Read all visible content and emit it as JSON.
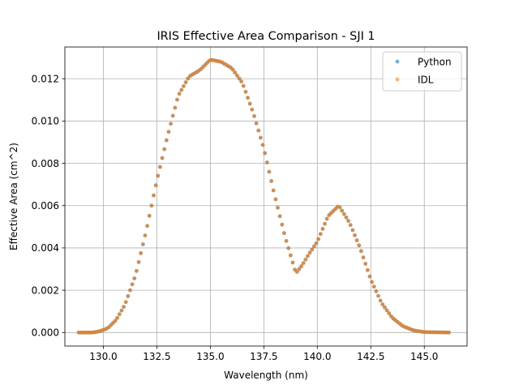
{
  "chart_data": {
    "type": "scatter",
    "title": "IRIS Effective Area Comparison - SJI 1",
    "xlabel": "Wavelength (nm)",
    "ylabel": "Effective Area (cm^2)",
    "xlim": [
      128.2,
      147.0
    ],
    "ylim": [
      -0.00064,
      0.0135
    ],
    "x_ticks": [
      130.0,
      132.5,
      135.0,
      137.5,
      140.0,
      142.5,
      145.0
    ],
    "x_tick_labels": [
      "130.0",
      "132.5",
      "135.0",
      "137.5",
      "140.0",
      "142.5",
      "145.0"
    ],
    "y_ticks": [
      0.0,
      0.002,
      0.004,
      0.006,
      0.008,
      0.01,
      0.012
    ],
    "y_tick_labels": [
      "0.000",
      "0.002",
      "0.004",
      "0.006",
      "0.008",
      "0.010",
      "0.012"
    ],
    "grid": true,
    "legend_position": "top-right",
    "x_range": [
      128.85,
      146.15
    ],
    "x_step": 0.1,
    "curve_keypoints": [
      [
        128.85,
        0.0
      ],
      [
        129.5,
        0.0
      ],
      [
        129.8,
        5e-05
      ],
      [
        130.2,
        0.0002
      ],
      [
        130.6,
        0.0006
      ],
      [
        131.0,
        0.0013
      ],
      [
        131.5,
        0.0027
      ],
      [
        132.0,
        0.0048
      ],
      [
        132.5,
        0.0072
      ],
      [
        133.0,
        0.0093
      ],
      [
        133.5,
        0.0112
      ],
      [
        134.0,
        0.0121
      ],
      [
        134.5,
        0.0124
      ],
      [
        135.0,
        0.0129
      ],
      [
        135.5,
        0.0128
      ],
      [
        136.0,
        0.0125
      ],
      [
        136.5,
        0.0118
      ],
      [
        137.0,
        0.0104
      ],
      [
        137.5,
        0.0087
      ],
      [
        138.0,
        0.0065
      ],
      [
        138.5,
        0.0045
      ],
      [
        139.0,
        0.0028
      ],
      [
        139.3,
        0.0032
      ],
      [
        139.6,
        0.0037
      ],
      [
        140.0,
        0.0043
      ],
      [
        140.5,
        0.0055
      ],
      [
        141.0,
        0.006
      ],
      [
        141.5,
        0.0052
      ],
      [
        142.0,
        0.004
      ],
      [
        142.5,
        0.0025
      ],
      [
        143.0,
        0.0014
      ],
      [
        143.5,
        0.0007
      ],
      [
        144.0,
        0.0003
      ],
      [
        144.5,
        0.0001
      ],
      [
        145.0,
        2e-05
      ],
      [
        146.15,
        0.0
      ]
    ],
    "series": [
      {
        "name": "Python",
        "color": "#1f77b4"
      },
      {
        "name": "IDL",
        "color": "#ff7f0e"
      }
    ]
  }
}
